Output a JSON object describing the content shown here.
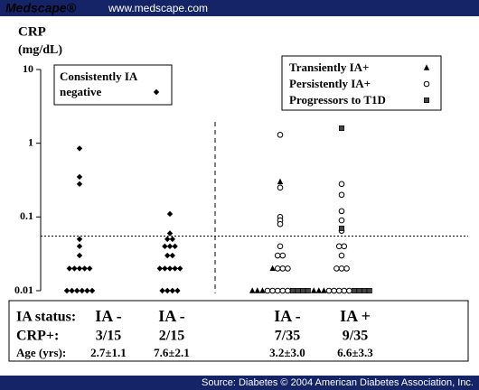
{
  "header": {
    "brand": "Medscape®",
    "url": "www.medscape.com"
  },
  "footer": "Source: Diabetes © 2004 American Diabetes Association, Inc.",
  "chart_data": {
    "type": "strip",
    "ylabel": "CRP",
    "yunit": "(mg/dL)",
    "log_y": true,
    "ylim": [
      0.01,
      10
    ],
    "yticks": [
      0.01,
      0.1,
      1,
      10
    ],
    "threshold": 0.055,
    "categories": [
      "IA -",
      "IA -",
      "IA -",
      "IA +"
    ],
    "series": [
      {
        "name": "Consistently IA negative",
        "marker": "diamond",
        "color": "#000000",
        "values": [
          [
            0.85,
            0.35,
            0.28,
            0.05,
            0.04,
            0.03,
            0.02,
            0.02,
            0.02,
            0.02,
            0.02,
            0.01,
            0.01,
            0.01,
            0.01,
            0.01,
            0.01
          ],
          [
            0.11,
            0.06,
            0.05,
            0.05,
            0.04,
            0.04,
            0.04,
            0.03,
            0.03,
            0.02,
            0.02,
            0.02,
            0.02,
            0.02,
            0.01,
            0.01,
            0.01,
            0.01
          ],
          [],
          []
        ]
      },
      {
        "name": "Transiently IA+",
        "marker": "triangle",
        "color": "#000000",
        "values": [
          [],
          [],
          [
            0.3,
            0.02,
            0.01,
            0.01,
            0.01
          ],
          [
            0.01,
            0.01,
            0.01
          ]
        ]
      },
      {
        "name": "Persistently IA+",
        "marker": "circle",
        "color": "#000000",
        "values": [
          [],
          [],
          [
            1.3,
            0.25,
            0.1,
            0.09,
            0.08,
            0.04,
            0.03,
            0.03,
            0.02,
            0.02,
            0.02,
            0.01,
            0.01,
            0.01,
            0.01,
            0.01
          ],
          [
            0.28,
            0.2,
            0.12,
            0.09,
            0.065,
            0.04,
            0.04,
            0.03,
            0.02,
            0.02,
            0.02,
            0.01,
            0.01,
            0.01,
            0.01,
            0.01
          ]
        ]
      },
      {
        "name": "Progressors to T1D",
        "marker": "square",
        "color": "#444444",
        "values": [
          [],
          [],
          [
            0.01,
            0.01,
            0.01,
            0.01
          ],
          [
            1.6,
            0.07,
            0.01,
            0.01,
            0.01,
            0.01
          ]
        ]
      }
    ],
    "table": {
      "row_labels": [
        "IA status:",
        "CRP+:",
        "Age (yrs):"
      ],
      "crp_positive": [
        "3/15",
        "2/15",
        "7/35",
        "9/35"
      ],
      "age": [
        "2.7±1.1",
        "7.6±2.1",
        "3.2±3.0",
        "6.6±3.3"
      ]
    }
  }
}
